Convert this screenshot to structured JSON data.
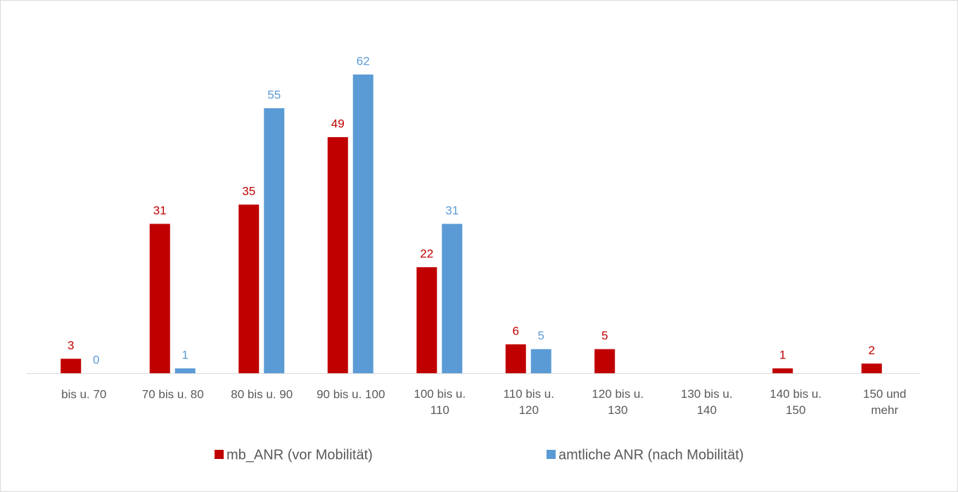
{
  "chart_data": {
    "type": "bar",
    "categories": [
      "bis u. 70",
      "70 bis u. 80",
      "80 bis u. 90",
      "90 bis u. 100",
      "100 bis u.\n110",
      "110 bis u.\n120",
      "120 bis u.\n130",
      "130 bis u.\n140",
      "140 bis u.\n150",
      "150 und\nmehr"
    ],
    "series": [
      {
        "name": "mb_ANR (vor Mobilität)",
        "color": "#c00000",
        "values": [
          3,
          31,
          35,
          49,
          22,
          6,
          5,
          null,
          1,
          2
        ]
      },
      {
        "name": "amtliche ANR (nach Mobilität)",
        "color": "#5b9bd5",
        "values": [
          0,
          1,
          55,
          62,
          31,
          5,
          null,
          null,
          null,
          null
        ]
      }
    ],
    "legend": "bottom"
  }
}
